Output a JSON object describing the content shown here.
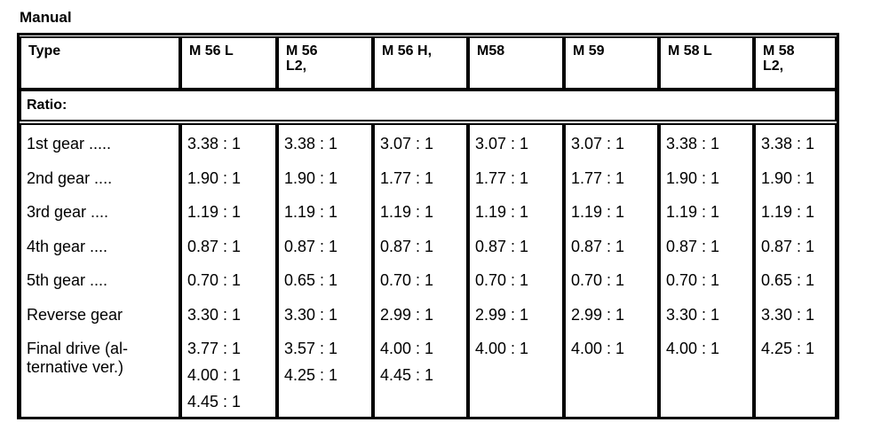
{
  "title": "Manual",
  "type_label": "Type",
  "ratio_label": "Ratio:",
  "types": [
    "M 56 L",
    "M 56\nL2,",
    "M 56 H,",
    "M58",
    "M 59",
    "M 58 L",
    "M 58\nL2,"
  ],
  "rows": [
    {
      "label": "1st gear .....",
      "values": [
        [
          "3.38 : 1"
        ],
        [
          "3.38 : 1"
        ],
        [
          "3.07 : 1"
        ],
        [
          "3.07 : 1"
        ],
        [
          "3.07 : 1"
        ],
        [
          "3.38 : 1"
        ],
        [
          "3.38 : 1"
        ]
      ]
    },
    {
      "label": "2nd gear ....",
      "values": [
        [
          "1.90 : 1"
        ],
        [
          "1.90 : 1"
        ],
        [
          "1.77 : 1"
        ],
        [
          "1.77 : 1"
        ],
        [
          "1.77 : 1"
        ],
        [
          "1.90 : 1"
        ],
        [
          "1.90 : 1"
        ]
      ]
    },
    {
      "label": "3rd gear ....",
      "values": [
        [
          "1.19 : 1"
        ],
        [
          "1.19 : 1"
        ],
        [
          "1.19 : 1"
        ],
        [
          "1.19 : 1"
        ],
        [
          "1.19 : 1"
        ],
        [
          "1.19 : 1"
        ],
        [
          "1.19 : 1"
        ]
      ]
    },
    {
      "label": "4th gear ....",
      "values": [
        [
          "0.87 : 1"
        ],
        [
          "0.87 : 1"
        ],
        [
          "0.87 : 1"
        ],
        [
          "0.87 : 1"
        ],
        [
          "0.87 : 1"
        ],
        [
          "0.87 : 1"
        ],
        [
          "0.87 : 1"
        ]
      ]
    },
    {
      "label": "5th gear ....",
      "values": [
        [
          "0.70 : 1"
        ],
        [
          "0.65 : 1"
        ],
        [
          "0.70 : 1"
        ],
        [
          "0.70 : 1"
        ],
        [
          "0.70 : 1"
        ],
        [
          "0.70 : 1"
        ],
        [
          "0.65 : 1"
        ]
      ]
    },
    {
      "label": "Reverse gear",
      "values": [
        [
          "3.30 : 1"
        ],
        [
          "3.30 : 1"
        ],
        [
          "2.99 : 1"
        ],
        [
          "2.99 : 1"
        ],
        [
          "2.99 : 1"
        ],
        [
          "3.30 : 1"
        ],
        [
          "3.30 : 1"
        ]
      ]
    },
    {
      "label": "Final drive (al-\nternative ver.)",
      "values": [
        [
          "3.77 : 1",
          "4.00 : 1",
          "4.45 : 1"
        ],
        [
          "3.57 : 1",
          "4.25 : 1"
        ],
        [
          "4.00 : 1",
          "4.45 : 1"
        ],
        [
          "4.00 : 1"
        ],
        [
          "4.00 : 1"
        ],
        [
          "4.00 : 1"
        ],
        [
          "4.25 : 1"
        ]
      ]
    }
  ]
}
